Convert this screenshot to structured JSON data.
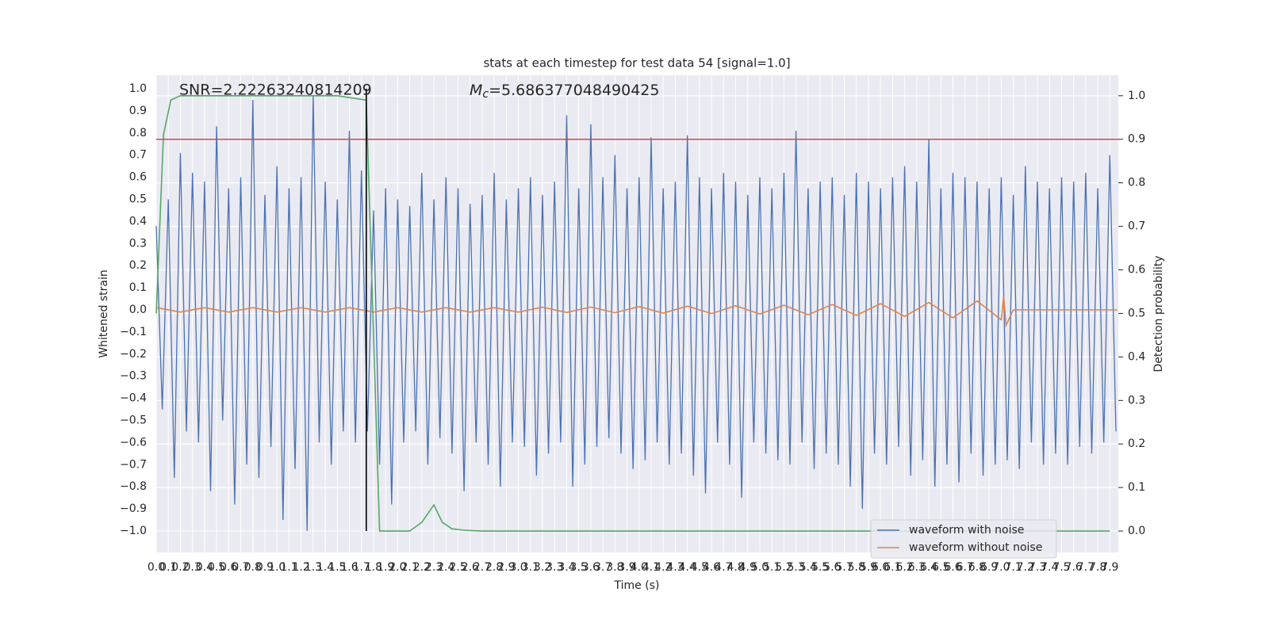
{
  "chart_data": {
    "type": "line",
    "title": "stats at each timestep for test data 54 [signal=1.0]",
    "xlabel": "Time (s)",
    "ylabel": "Whitened strain",
    "y2label": "Detection probability",
    "snr_text": "SNR=2.22263240814209",
    "mc_text": {
      "symbol": "M",
      "sub": "c",
      "rest": "=5.686377048490425"
    },
    "grid": true,
    "background": "#eaeaf2",
    "legend": "lower right",
    "xlim": [
      0,
      7.97
    ],
    "ylim": [
      -1.097,
      1.061
    ],
    "y2lim": [
      -0.049,
      1.047
    ],
    "xticks": [
      {
        "value": 0,
        "label": "0.0"
      },
      {
        "value": 0.1,
        "label": "0.1"
      },
      {
        "value": 0.2,
        "label": "0.2"
      },
      {
        "value": 0.3,
        "label": "0.3"
      },
      {
        "value": 0.4,
        "label": "0.4"
      },
      {
        "value": 0.5,
        "label": "0.5"
      },
      {
        "value": 0.6,
        "label": "0.6"
      },
      {
        "value": 0.7,
        "label": "0.7"
      },
      {
        "value": 0.8,
        "label": "0.8"
      },
      {
        "value": 0.9,
        "label": "0.9"
      },
      {
        "value": 1,
        "label": "1.0"
      },
      {
        "value": 1.1,
        "label": "1.1"
      },
      {
        "value": 1.2,
        "label": "1.2"
      },
      {
        "value": 1.3,
        "label": "1.3"
      },
      {
        "value": 1.4,
        "label": "1.4"
      },
      {
        "value": 1.5,
        "label": "1.5"
      },
      {
        "value": 1.6,
        "label": "1.6"
      },
      {
        "value": 1.7,
        "label": "1.7"
      },
      {
        "value": 1.8,
        "label": "1.8"
      },
      {
        "value": 1.9,
        "label": "1.9"
      },
      {
        "value": 2,
        "label": "2.0"
      },
      {
        "value": 2.1,
        "label": "2.1"
      },
      {
        "value": 2.2,
        "label": "2.2"
      },
      {
        "value": 2.3,
        "label": "2.3"
      },
      {
        "value": 2.4,
        "label": "2.4"
      },
      {
        "value": 2.5,
        "label": "2.5"
      },
      {
        "value": 2.6,
        "label": "2.6"
      },
      {
        "value": 2.7,
        "label": "2.7"
      },
      {
        "value": 2.8,
        "label": "2.8"
      },
      {
        "value": 2.9,
        "label": "2.9"
      },
      {
        "value": 3,
        "label": "3.0"
      },
      {
        "value": 3.1,
        "label": "3.1"
      },
      {
        "value": 3.2,
        "label": "3.2"
      },
      {
        "value": 3.3,
        "label": "3.3"
      },
      {
        "value": 3.4,
        "label": "3.4"
      },
      {
        "value": 3.5,
        "label": "3.5"
      },
      {
        "value": 3.6,
        "label": "3.6"
      },
      {
        "value": 3.7,
        "label": "3.7"
      },
      {
        "value": 3.8,
        "label": "3.8"
      },
      {
        "value": 3.9,
        "label": "3.9"
      },
      {
        "value": 4,
        "label": "4.0"
      },
      {
        "value": 4.1,
        "label": "4.1"
      },
      {
        "value": 4.2,
        "label": "4.2"
      },
      {
        "value": 4.3,
        "label": "4.3"
      },
      {
        "value": 4.4,
        "label": "4.4"
      },
      {
        "value": 4.5,
        "label": "4.5"
      },
      {
        "value": 4.6,
        "label": "4.6"
      },
      {
        "value": 4.7,
        "label": "4.7"
      },
      {
        "value": 4.8,
        "label": "4.8"
      },
      {
        "value": 4.9,
        "label": "4.9"
      },
      {
        "value": 5,
        "label": "5.0"
      },
      {
        "value": 5.1,
        "label": "5.1"
      },
      {
        "value": 5.2,
        "label": "5.2"
      },
      {
        "value": 5.3,
        "label": "5.3"
      },
      {
        "value": 5.4,
        "label": "5.4"
      },
      {
        "value": 5.5,
        "label": "5.5"
      },
      {
        "value": 5.6,
        "label": "5.6"
      },
      {
        "value": 5.7,
        "label": "5.7"
      },
      {
        "value": 5.8,
        "label": "5.8"
      },
      {
        "value": 5.9,
        "label": "5.9"
      },
      {
        "value": 6,
        "label": "6.0"
      },
      {
        "value": 6.1,
        "label": "6.1"
      },
      {
        "value": 6.2,
        "label": "6.2"
      },
      {
        "value": 6.3,
        "label": "6.3"
      },
      {
        "value": 6.4,
        "label": "6.4"
      },
      {
        "value": 6.5,
        "label": "6.5"
      },
      {
        "value": 6.6,
        "label": "6.6"
      },
      {
        "value": 6.7,
        "label": "6.7"
      },
      {
        "value": 6.8,
        "label": "6.8"
      },
      {
        "value": 6.9,
        "label": "6.9"
      },
      {
        "value": 7,
        "label": "7.0"
      },
      {
        "value": 7.1,
        "label": "7.1"
      },
      {
        "value": 7.2,
        "label": "7.2"
      },
      {
        "value": 7.3,
        "label": "7.3"
      },
      {
        "value": 7.4,
        "label": "7.4"
      },
      {
        "value": 7.5,
        "label": "7.5"
      },
      {
        "value": 7.6,
        "label": "7.6"
      },
      {
        "value": 7.7,
        "label": "7.7"
      },
      {
        "value": 7.8,
        "label": "7.8"
      },
      {
        "value": 7.9,
        "label": "7.9"
      }
    ],
    "yticks": [
      {
        "value": -1,
        "label": "−1.0"
      },
      {
        "value": -0.9,
        "label": "−0.9"
      },
      {
        "value": -0.8,
        "label": "−0.8"
      },
      {
        "value": -0.7,
        "label": "−0.7"
      },
      {
        "value": -0.6,
        "label": "−0.6"
      },
      {
        "value": -0.5,
        "label": "−0.5"
      },
      {
        "value": -0.4,
        "label": "−0.4"
      },
      {
        "value": -0.3,
        "label": "−0.3"
      },
      {
        "value": -0.2,
        "label": "−0.2"
      },
      {
        "value": -0.1,
        "label": "−0.1"
      },
      {
        "value": 0,
        "label": "0.0"
      },
      {
        "value": 0.1,
        "label": "0.1"
      },
      {
        "value": 0.2,
        "label": "0.2"
      },
      {
        "value": 0.3,
        "label": "0.3"
      },
      {
        "value": 0.4,
        "label": "0.4"
      },
      {
        "value": 0.5,
        "label": "0.5"
      },
      {
        "value": 0.6,
        "label": "0.6"
      },
      {
        "value": 0.7,
        "label": "0.7"
      },
      {
        "value": 0.8,
        "label": "0.8"
      },
      {
        "value": 0.9,
        "label": "0.9"
      },
      {
        "value": 1,
        "label": "1.0"
      }
    ],
    "y2ticks": [
      {
        "value": 0,
        "label": "0.0"
      },
      {
        "value": 0.1,
        "label": "0.1"
      },
      {
        "value": 0.2,
        "label": "0.2"
      },
      {
        "value": 0.3,
        "label": "0.3"
      },
      {
        "value": 0.4,
        "label": "0.4"
      },
      {
        "value": 0.5,
        "label": "0.5"
      },
      {
        "value": 0.6,
        "label": "0.6"
      },
      {
        "value": 0.7,
        "label": "0.7"
      },
      {
        "value": 0.8,
        "label": "0.8"
      },
      {
        "value": 0.9,
        "label": "0.9"
      },
      {
        "value": 1,
        "label": "1.0"
      }
    ],
    "series": [
      {
        "name": "waveform with noise",
        "color": "#4c72b0",
        "x": [
          0,
          0.05,
          0.1,
          0.15,
          0.2,
          0.25,
          0.3,
          0.35,
          0.4,
          0.45,
          0.5,
          0.55,
          0.6,
          0.65,
          0.7,
          0.75,
          0.8,
          0.85,
          0.9,
          0.95,
          1,
          1.05,
          1.1,
          1.15,
          1.2,
          1.25,
          1.3,
          1.35,
          1.4,
          1.45,
          1.5,
          1.55,
          1.6,
          1.65,
          1.7,
          1.75,
          1.8,
          1.85,
          1.9,
          1.95,
          2,
          2.05,
          2.1,
          2.15,
          2.2,
          2.25,
          2.3,
          2.35,
          2.4,
          2.45,
          2.5,
          2.55,
          2.6,
          2.65,
          2.7,
          2.75,
          2.8,
          2.85,
          2.9,
          2.95,
          3,
          3.05,
          3.1,
          3.15,
          3.2,
          3.25,
          3.3,
          3.35,
          3.4,
          3.45,
          3.5,
          3.55,
          3.6,
          3.65,
          3.7,
          3.75,
          3.8,
          3.85,
          3.9,
          3.95,
          4,
          4.05,
          4.1,
          4.15,
          4.2,
          4.25,
          4.3,
          4.35,
          4.4,
          4.45,
          4.5,
          4.55,
          4.6,
          4.65,
          4.7,
          4.75,
          4.8,
          4.85,
          4.9,
          4.95,
          5,
          5.05,
          5.1,
          5.15,
          5.2,
          5.25,
          5.3,
          5.35,
          5.4,
          5.45,
          5.5,
          5.55,
          5.6,
          5.65,
          5.7,
          5.75,
          5.8,
          5.85,
          5.9,
          5.95,
          6,
          6.05,
          6.1,
          6.15,
          6.2,
          6.25,
          6.3,
          6.35,
          6.4,
          6.45,
          6.5,
          6.55,
          6.6,
          6.65,
          6.7,
          6.75,
          6.8,
          6.85,
          6.9,
          6.95,
          7,
          7.05,
          7.1,
          7.15,
          7.2,
          7.25,
          7.3,
          7.35,
          7.4,
          7.45,
          7.5,
          7.55,
          7.6,
          7.65,
          7.7,
          7.75,
          7.8,
          7.85,
          7.9,
          7.95
        ],
        "values": [
          0.38,
          -0.45,
          0.5,
          -0.76,
          0.71,
          -0.55,
          0.62,
          -0.6,
          0.58,
          -0.82,
          0.83,
          -0.5,
          0.55,
          -0.88,
          0.6,
          -0.7,
          0.95,
          -0.76,
          0.52,
          -0.62,
          0.65,
          -0.95,
          0.55,
          -0.72,
          0.6,
          -1.0,
          0.97,
          -0.6,
          0.58,
          -0.7,
          0.5,
          -0.55,
          0.81,
          -0.6,
          0.63,
          -0.55,
          0.45,
          -0.7,
          0.55,
          -0.88,
          0.5,
          -0.6,
          0.47,
          -0.55,
          0.62,
          -0.7,
          0.5,
          -0.58,
          0.6,
          -0.65,
          0.55,
          -0.82,
          0.48,
          -0.6,
          0.52,
          -0.7,
          0.62,
          -0.8,
          0.5,
          -0.6,
          0.55,
          -0.62,
          0.6,
          -0.75,
          0.52,
          -0.65,
          0.58,
          -0.6,
          0.88,
          -0.8,
          0.55,
          -0.7,
          0.84,
          -0.62,
          0.6,
          -0.58,
          0.7,
          -0.65,
          0.55,
          -0.72,
          0.6,
          -0.68,
          0.78,
          -0.6,
          0.55,
          -0.7,
          0.58,
          -0.65,
          0.79,
          -0.75,
          0.6,
          -0.83,
          0.55,
          -0.6,
          0.62,
          -0.7,
          0.58,
          -0.85,
          0.52,
          -0.6,
          0.6,
          -0.65,
          0.55,
          -0.68,
          0.62,
          -0.7,
          0.81,
          -0.6,
          0.55,
          -0.72,
          0.58,
          -0.65,
          0.6,
          -0.7,
          0.52,
          -0.8,
          0.62,
          -0.9,
          0.58,
          -0.65,
          0.55,
          -0.7,
          0.6,
          -0.62,
          0.65,
          -0.75,
          0.58,
          -0.68,
          0.77,
          -0.8,
          0.55,
          -0.7,
          0.62,
          -0.78,
          0.6,
          -0.65,
          0.58,
          -0.75,
          0.55,
          -0.7,
          0.6,
          -0.68,
          0.52,
          -0.72,
          0.65,
          -0.6,
          0.58,
          -0.7,
          0.55,
          -0.65,
          0.6,
          -0.7,
          0.58,
          -0.62,
          0.62,
          -0.65,
          0.55,
          -0.6,
          0.7,
          -0.55
        ]
      },
      {
        "name": "waveform without noise",
        "color": "#dd8452",
        "x": [
          0,
          0.2,
          0.4,
          0.6,
          0.8,
          1,
          1.2,
          1.4,
          1.6,
          1.8,
          2,
          2.2,
          2.4,
          2.6,
          2.8,
          3,
          3.2,
          3.4,
          3.6,
          3.8,
          4,
          4.2,
          4.4,
          4.6,
          4.8,
          5,
          5.2,
          5.4,
          5.6,
          5.8,
          6,
          6.2,
          6.4,
          6.6,
          6.8,
          7,
          7.02,
          7.04,
          7.1,
          7.96
        ],
        "values": [
          0.01,
          -0.01,
          0.01,
          -0.01,
          0.01,
          -0.01,
          0.01,
          -0.01,
          0.01,
          -0.01,
          0.01,
          -0.01,
          0.01,
          -0.01,
          0.01,
          -0.01,
          0.012,
          -0.012,
          0.013,
          -0.013,
          0.015,
          -0.015,
          0.017,
          -0.017,
          0.019,
          -0.019,
          0.021,
          -0.022,
          0.024,
          -0.025,
          0.028,
          -0.03,
          0.033,
          -0.036,
          0.04,
          -0.045,
          0.06,
          -0.07,
          0,
          0
        ]
      },
      {
        "color": "#55a868",
        "axis": "y2",
        "x": [
          0,
          0.06,
          0.12,
          0.2,
          0.5,
          1,
          1.5,
          1.74,
          1.85,
          1.95,
          2.1,
          2.2,
          2.3,
          2.37,
          2.45,
          2.55,
          2.7,
          3,
          4,
          5,
          6,
          7,
          7.9
        ],
        "values": [
          0.5,
          0.91,
          0.99,
          1,
          1,
          1,
          1,
          0.99,
          0,
          0,
          0,
          0.02,
          0.06,
          0.02,
          0.005,
          0.002,
          0,
          0,
          0,
          0,
          0,
          0,
          0
        ]
      }
    ],
    "hline": {
      "value": 0.9,
      "axis": "y2",
      "color": "#c44e52"
    },
    "vline": {
      "x": 1.74,
      "ymin": -1,
      "ymax": 1,
      "color": "#000000"
    }
  }
}
